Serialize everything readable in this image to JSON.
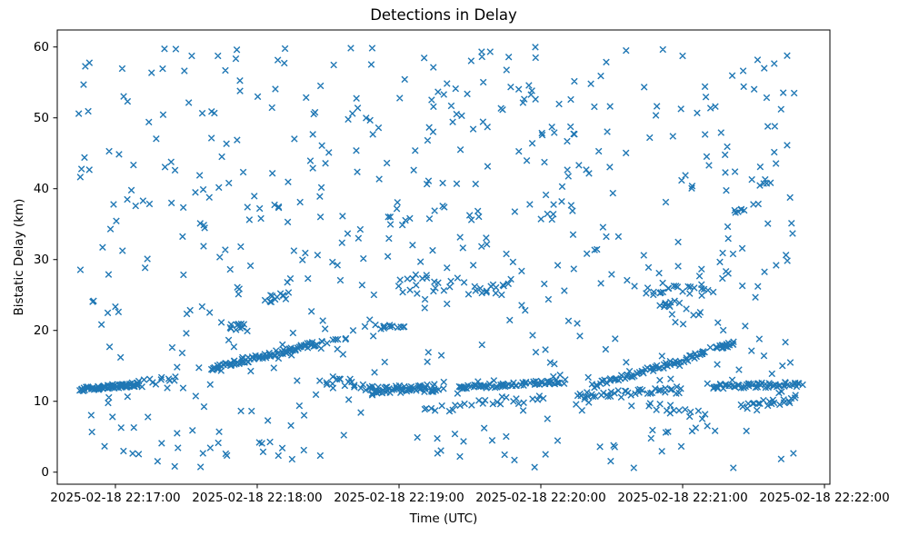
{
  "figure": {
    "title": "Detections in Delay",
    "xlabel": "Time (UTC)",
    "ylabel": "Bistatic Delay (km)"
  },
  "chart_data": {
    "type": "scatter",
    "title": "Detections in Delay",
    "xlabel": "Time (UTC)",
    "ylabel": "Bistatic Delay (km)",
    "legend": "none",
    "grid": false,
    "marker": "x",
    "marker_color": "#1f77b4",
    "marker_size_px": 6.5,
    "axis_color": "#000000",
    "background_color": "#ffffff",
    "x_tick_labels": [
      "2025-02-18 22:17:00",
      "2025-02-18 22:18:00",
      "2025-02-18 22:19:00",
      "2025-02-18 22:20:00",
      "2025-02-18 22:21:00",
      "2025-02-18 22:22:00"
    ],
    "x_tick_seconds_after_2216": [
      60,
      120,
      180,
      240,
      300,
      360
    ],
    "y_tick_values": [
      0,
      10,
      20,
      30,
      40,
      50,
      60
    ],
    "xlim_seconds_after_2216": [
      35.4,
      362.3
    ],
    "ylim_km": [
      -1.7,
      62.4
    ],
    "data_time_span": [
      "2025-02-18 22:16:45",
      "2025-02-18 22:21:50"
    ],
    "data_y_span_km": [
      0.6,
      60.0
    ],
    "n_points_approx": 1250,
    "background_scatter": {
      "seed": 42,
      "n": 580,
      "t_range_seconds_after_2216": [
        44,
        349
      ],
      "y_range_km": [
        0.6,
        60.0
      ]
    },
    "track_segments": [
      {
        "t0": 45,
        "t1": 70,
        "y0": 11.7,
        "y1": 12.4,
        "n": 75,
        "jt": 1.5,
        "jy": 0.3
      },
      {
        "t0": 70,
        "t1": 86,
        "y0": 12.4,
        "y1": 13.3,
        "n": 12,
        "jt": 2.0,
        "jy": 0.5
      },
      {
        "t0": 100,
        "t1": 145,
        "y0": 14.6,
        "y1": 18.1,
        "n": 85,
        "jt": 1.5,
        "jy": 0.35
      },
      {
        "t0": 145,
        "t1": 158,
        "y0": 18.1,
        "y1": 18.7,
        "n": 9,
        "jt": 2.0,
        "jy": 0.3
      },
      {
        "t0": 108,
        "t1": 115,
        "y0": 20.4,
        "y1": 20.9,
        "n": 10,
        "jt": 1.5,
        "jy": 0.5
      },
      {
        "t0": 124,
        "t1": 133,
        "y0": 24.4,
        "y1": 24.9,
        "n": 12,
        "jt": 2.0,
        "jy": 0.5
      },
      {
        "t0": 150,
        "t1": 168,
        "y0": 13.2,
        "y1": 11.8,
        "n": 16,
        "jt": 2.0,
        "jy": 0.6
      },
      {
        "t0": 168,
        "t1": 196,
        "y0": 11.6,
        "y1": 11.9,
        "n": 60,
        "jt": 2.0,
        "jy": 0.55
      },
      {
        "t0": 170,
        "t1": 182,
        "y0": 19.8,
        "y1": 20.9,
        "n": 10,
        "jt": 2.0,
        "jy": 0.6
      },
      {
        "t0": 205,
        "t1": 250,
        "y0": 11.9,
        "y1": 12.8,
        "n": 65,
        "jt": 2.0,
        "jy": 0.3
      },
      {
        "t0": 190,
        "t1": 242,
        "y0": 8.8,
        "y1": 10.5,
        "n": 26,
        "jt": 2.0,
        "jy": 0.6
      },
      {
        "t0": 262,
        "t1": 310,
        "y0": 12.2,
        "y1": 16.8,
        "n": 70,
        "jt": 1.5,
        "jy": 0.35
      },
      {
        "t0": 255,
        "t1": 300,
        "y0": 10.7,
        "y1": 11.6,
        "n": 42,
        "jt": 2.0,
        "jy": 0.5
      },
      {
        "t0": 314,
        "t1": 322,
        "y0": 17.5,
        "y1": 18.2,
        "n": 18,
        "jt": 1.5,
        "jy": 0.3
      },
      {
        "t0": 313,
        "t1": 350,
        "y0": 12.1,
        "y1": 12.4,
        "n": 60,
        "jt": 2.0,
        "jy": 0.35
      },
      {
        "t0": 285,
        "t1": 310,
        "y0": 9.6,
        "y1": 7.8,
        "n": 14,
        "jt": 2.0,
        "jy": 0.6
      },
      {
        "t0": 325,
        "t1": 348,
        "y0": 9.3,
        "y1": 10.3,
        "n": 20,
        "jt": 2.0,
        "jy": 0.5
      },
      {
        "t0": 180,
        "t1": 200,
        "y0": 26.2,
        "y1": 26.6,
        "n": 15,
        "jt": 3.0,
        "jy": 1.4
      },
      {
        "t0": 210,
        "t1": 226,
        "y0": 25.7,
        "y1": 26.1,
        "n": 12,
        "jt": 3.0,
        "jy": 0.6
      },
      {
        "t0": 284,
        "t1": 312,
        "y0": 25.6,
        "y1": 26.0,
        "n": 22,
        "jt": 3.0,
        "jy": 0.7
      },
      {
        "t0": 291,
        "t1": 296,
        "y0": 23.5,
        "y1": 23.9,
        "n": 8,
        "jt": 1.5,
        "jy": 0.4
      },
      {
        "t0": 322,
        "t1": 326,
        "y0": 36.8,
        "y1": 37.1,
        "n": 6,
        "jt": 1.0,
        "jy": 0.3
      },
      {
        "t0": 333,
        "t1": 337,
        "y0": 40.7,
        "y1": 41.1,
        "n": 5,
        "jt": 1.0,
        "jy": 0.4
      }
    ]
  }
}
